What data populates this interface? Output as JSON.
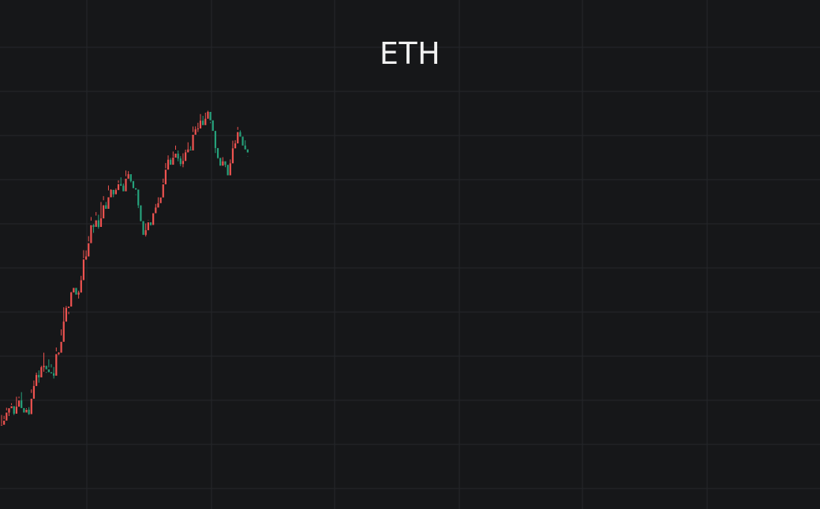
{
  "chart_data": {
    "type": "candlestick",
    "title": "ETH",
    "xlabel": "",
    "ylabel": "",
    "grid": true,
    "ylim": [
      0,
      646
    ],
    "colors": {
      "background": "#161719",
      "grid": "#25272b",
      "up": "#26a17b",
      "down": "#ef5350",
      "title": "#f2f2f2"
    },
    "candles": [
      [
        0.0,
        -0.9,
        -1.6,
        -13.4
      ],
      [
        -0.9,
        -6.2,
        -7.9,
        -12.3
      ],
      [
        -6.2,
        -16.4,
        -19.2,
        -22.5
      ],
      [
        -16.4,
        -21.9,
        -21.2,
        -12.0
      ],
      [
        -21.9,
        -24.5,
        -28.2,
        -26.1
      ],
      [
        -24.5,
        -15.0,
        -13.3,
        -23.6
      ],
      [
        -15.0,
        -23.8,
        -22.4,
        -36.5
      ],
      [
        -23.8,
        -31.7,
        -34.6,
        -36.6
      ],
      [
        -31.7,
        -22.1,
        -26.0,
        -42.3
      ],
      [
        -22.1,
        -16.5,
        -17.1,
        -16.4
      ],
      [
        -16.5,
        -20.0,
        -21.9,
        -20.6
      ],
      [
        -20.0,
        -14.4,
        -13.5,
        -23.3
      ],
      [
        -14.4,
        -33.9,
        -41.3,
        -45.8
      ],
      [
        -33.9,
        -50.1,
        -47.1,
        -57.1
      ],
      [
        -50.1,
        -64.1,
        -60.3,
        -67.1
      ],
      [
        -64.1,
        -61.1,
        -69.9,
        -54.3
      ],
      [
        -61.1,
        -73.9,
        -71.7,
        -75.7
      ],
      [
        -73.9,
        -75.7,
        -68.2,
        -92.4
      ],
      [
        -75.7,
        -71.3,
        -66.8,
        -67.9
      ],
      [
        -71.3,
        -67.6,
        -73.6,
        -83.9
      ],
      [
        -67.6,
        -66.2,
        -73.6,
        -77.8
      ],
      [
        -66.2,
        -63.2,
        -59.6,
        -74.2
      ],
      [
        -63.2,
        -90.6,
        -94.0,
        -99.0
      ],
      [
        -90.6,
        -92.4,
        -89.4,
        -93.0
      ],
      [
        -92.4,
        -106.2,
        -114.3,
        -122.0
      ],
      [
        -106.2,
        -131.8,
        -126.7,
        -150.1
      ],
      [
        -131.8,
        -149.1,
        -151.6,
        -147.0
      ],
      [
        -149.1,
        -150.9,
        -141.3,
        -144.3
      ],
      [
        -150.9,
        -168.8,
        -166.6,
        -169.6
      ],
      [
        -168.8,
        -174.6,
        -169.4,
        -171.8
      ],
      [
        -174.6,
        -166.1,
        -173.9,
        -169.5
      ],
      [
        -166.1,
        -168.7,
        -161.1,
        -171.1
      ],
      [
        -168.7,
        -184.5,
        -189.9,
        -184.7
      ],
      [
        -184.5,
        -210.8,
        -222.5,
        -212.1
      ],
      [
        -210.8,
        -214.5,
        -222.2,
        -210.1
      ],
      [
        -214.5,
        -231.4,
        -233.6,
        -240.3
      ],
      [
        -231.4,
        -254.2,
        -264.6,
        -259.9
      ],
      [
        -254.2,
        -252.1,
        -255.6,
        -244.5
      ],
      [
        -252.1,
        -260.4,
        -270.9,
        -266.4
      ],
      [
        -260.4,
        -252.0,
        -249.7,
        -267.5
      ],
      [
        -252.0,
        -262.8,
        -259.8,
        -283.6
      ],
      [
        -262.8,
        -279.5,
        -291.1,
        -285.8
      ],
      [
        -279.5,
        -275.0,
        -283.7,
        -276.9
      ],
      [
        -275.0,
        -289.6,
        -298.3,
        -304.6
      ],
      [
        -289.6,
        -299.1,
        -299.9,
        -295.7
      ],
      [
        -299.1,
        -293.4,
        -289.7,
        -299.0
      ],
      [
        -293.4,
        -298.8,
        -300.8,
        -294.5
      ],
      [
        -298.8,
        -306.4,
        -311.1,
        -307.9
      ],
      [
        -306.4,
        -304.4,
        -304.0,
        -314.9
      ],
      [
        -304.4,
        -297.2,
        -307.1,
        -300.0
      ],
      [
        -297.2,
        -313.2,
        -316.4,
        -323.6
      ],
      [
        -313.2,
        -318.9,
        -316.6,
        -322.8
      ],
      [
        -318.9,
        -310.2,
        -315.4,
        -308.5
      ],
      [
        -310.2,
        -301.2,
        -301.9,
        -305.8
      ],
      [
        -301.2,
        -299.4,
        -293.3,
        -292.5
      ],
      [
        -299.4,
        -279.4,
        -275.9,
        -285.2
      ],
      [
        -279.4,
        -259.4,
        -265.2,
        -259.1
      ],
      [
        -259.4,
        -241.9,
        -244.8,
        -247.6
      ],
      [
        -241.9,
        -247.8,
        -239.8,
        -256.5
      ],
      [
        -247.8,
        -257.8,
        -260.5,
        -259.9
      ],
      [
        -257.8,
        -254.5,
        -253.6,
        -256.6
      ],
      [
        -254.5,
        -269.4,
        -266.6,
        -263.8
      ],
      [
        -269.4,
        -276.6,
        -274.4,
        -281.2
      ],
      [
        -276.6,
        -282.2,
        -282.3,
        -289.6
      ],
      [
        -282.2,
        -289.4,
        -285.7,
        -285.5
      ],
      [
        -289.4,
        -306.1,
        -313.3,
        -307.9
      ],
      [
        -306.1,
        -324.7,
        -333.1,
        -326.3
      ],
      [
        -324.7,
        -337.3,
        -335.6,
        -342.8
      ],
      [
        -337.3,
        -330.9,
        -337.2,
        -339.6
      ],
      [
        -330.9,
        -340.0,
        -347.7,
        -340.4
      ],
      [
        -340.0,
        -345.0,
        -355.2,
        -350.0
      ],
      [
        -345.0,
        -338.8,
        -349.0,
        -335.3
      ],
      [
        -338.8,
        -331.8,
        -341.8,
        -329.2
      ],
      [
        -331.8,
        -335.7,
        -345.5,
        -327.7
      ],
      [
        -335.7,
        -346.6,
        -341.2,
        -350.1
      ],
      [
        -346.6,
        -350.3,
        -347.6,
        -359.4
      ],
      [
        -350.3,
        -349.1,
        -354.4,
        -350.6
      ],
      [
        -349.1,
        -369.0,
        -372.4,
        -379.5
      ],
      [
        -369.0,
        -375.9,
        -376.0,
        -379.6
      ],
      [
        -375.9,
        -376.9,
        -384.2,
        -372.5
      ],
      [
        -376.9,
        -386.8,
        -383.5,
        -395.3
      ],
      [
        -386.8,
        -381.2,
        -382.1,
        -393.0
      ],
      [
        -381.2,
        -389.3,
        -397.0,
        -385.4
      ],
      [
        -389.3,
        -398.0,
        -399.5,
        -397.7
      ],
      [
        -398.0,
        -387.3,
        -385.3,
        -383.6
      ],
      [
        -387.3,
        -373.9,
        -381.0,
        -377.7
      ],
      [
        -373.9,
        -352.1,
        -345.8,
        -359.9
      ],
      [
        -352.1,
        -339.6,
        -338.6,
        -348.7
      ],
      [
        -339.6,
        -329.7,
        -333.4,
        -331.5
      ],
      [
        -329.7,
        -335.3,
        -340.5,
        -335.3
      ],
      [
        -335.3,
        -330.8,
        -327.7,
        -333.9
      ],
      [
        -330.8,
        -317.5,
        -320.0,
        -324.0
      ],
      [
        -317.5,
        -332.7,
        -328.5,
        -337.7
      ],
      [
        -332.7,
        -351.7,
        -361.5,
        -346.1
      ],
      [
        -351.7,
        -358.0,
        -362.1,
        -353.8
      ],
      [
        -358.0,
        -372.4,
        -375.2,
        -378.9
      ],
      [
        -372.4,
        -366.6,
        -374.5,
        -366.8
      ],
      [
        -366.6,
        -355.3,
        -355.8,
        -361.0
      ],
      [
        -355.3,
        -350.4,
        -352.6,
        -361.9
      ],
      [
        -350.4,
        -346.5,
        -341.3,
        -341.7
      ]
    ]
  }
}
